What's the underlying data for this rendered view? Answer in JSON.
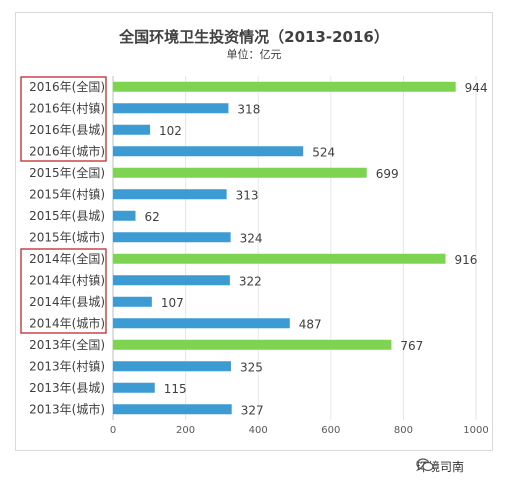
{
  "chart_data": {
    "type": "bar",
    "orientation": "horizontal",
    "title": "全国环境卫生投资情况（2013-2016）",
    "subtitle": "单位：亿元",
    "categories": [
      "2016年(全国)",
      "2016年(村镇)",
      "2016年(县城)",
      "2016年(城市)",
      "2015年(全国)",
      "2015年(村镇)",
      "2015年(县城)",
      "2015年(城市)",
      "2014年(全国)",
      "2014年(村镇)",
      "2014年(县城)",
      "2014年(城市)",
      "2013年(全国)",
      "2013年(村镇)",
      "2013年(县城)",
      "2013年(城市)"
    ],
    "values": [
      944,
      318,
      102,
      524,
      699,
      313,
      62,
      324,
      916,
      322,
      107,
      487,
      767,
      325,
      115,
      327
    ],
    "highlight": [
      true,
      false,
      false,
      false,
      true,
      false,
      false,
      false,
      true,
      false,
      false,
      false,
      true,
      false,
      false,
      false
    ],
    "xlim": [
      0,
      1000
    ],
    "xticks": [
      0,
      200,
      400,
      600,
      800,
      1000
    ],
    "colors": {
      "total": "#7ed350",
      "part": "#3b9bd2",
      "box": "#c0282d"
    },
    "boxed_groups": [
      0,
      2
    ],
    "grid": true
  },
  "watermark": {
    "text": "环境司南",
    "icon": "wechat-icon"
  }
}
